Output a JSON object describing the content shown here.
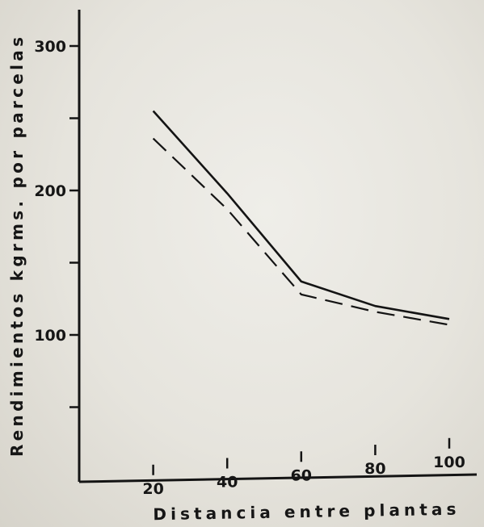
{
  "chart_data": {
    "type": "line",
    "title": "",
    "xlabel": "Distancia entre plantas",
    "ylabel": "Rendimientos kgrms. por parcelas",
    "x": [
      20,
      40,
      60,
      80,
      100
    ],
    "x_tick_labels": [
      "20",
      "40",
      "60",
      "80",
      "100"
    ],
    "y_tick_values": [
      100,
      200,
      300
    ],
    "y_tick_labels": [
      "100",
      "200",
      "300"
    ],
    "xlim": [
      0,
      100
    ],
    "ylim": [
      25,
      325
    ],
    "grid": false,
    "legend": "none",
    "series": [
      {
        "style": "solid",
        "values": [
          255,
          198,
          137,
          120,
          111
        ]
      },
      {
        "style": "dashed",
        "values": [
          236,
          187,
          128,
          116,
          107
        ]
      }
    ],
    "colors": {
      "line": "#141414",
      "axis": "#141414",
      "background": "#ebe9e3"
    }
  }
}
